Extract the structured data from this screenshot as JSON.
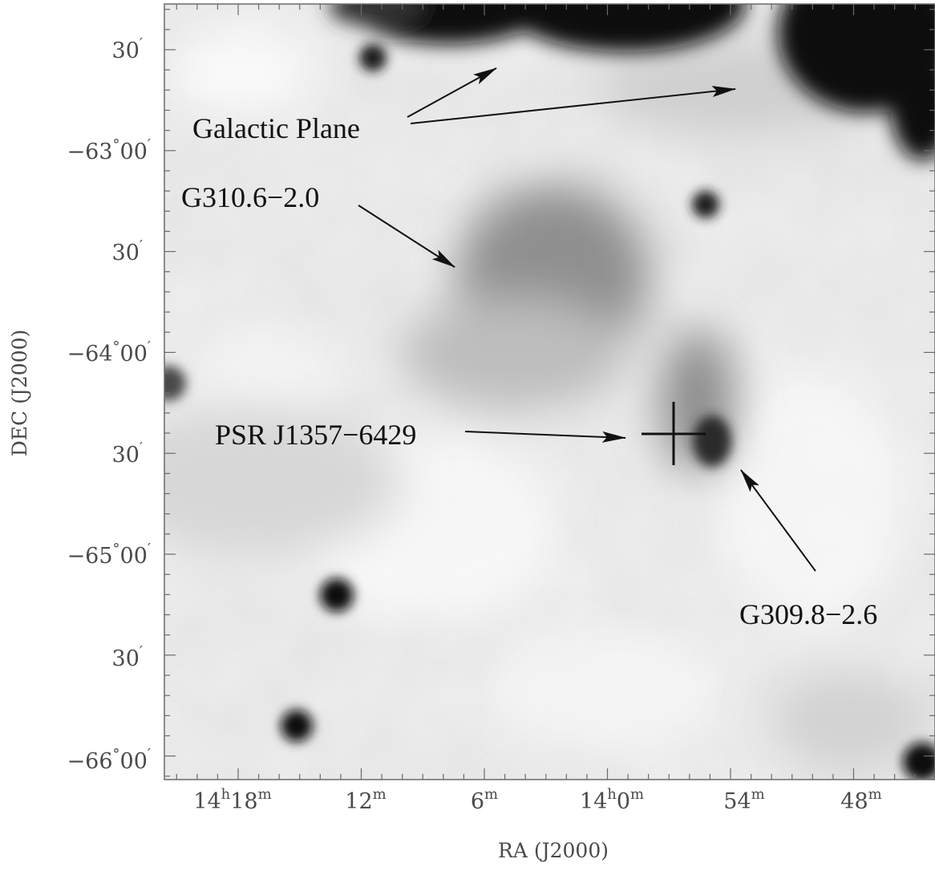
{
  "figure": {
    "x_axis_label": "RA (J2000)",
    "y_axis_label": "DEC (J2000)",
    "ra_ticks": [
      {
        "hours": "14",
        "minutes": "18",
        "h_sup": "h",
        "m_sup": "m"
      },
      {
        "hours": "",
        "minutes": "12",
        "h_sup": "",
        "m_sup": "m"
      },
      {
        "hours": "",
        "minutes": "6",
        "h_sup": "",
        "m_sup": "m"
      },
      {
        "hours": "14",
        "minutes": "0",
        "h_sup": "h",
        "m_sup": "m"
      },
      {
        "hours": "",
        "minutes": "54",
        "h_sup": "",
        "m_sup": "m"
      },
      {
        "hours": "",
        "minutes": "48",
        "h_sup": "",
        "m_sup": "m"
      }
    ],
    "dec_ticks": [
      {
        "deg": "",
        "min": "30",
        "deg_sup": "",
        "min_sup": "′"
      },
      {
        "deg": "−63",
        "min": "00",
        "deg_sup": "°",
        "min_sup": "′"
      },
      {
        "deg": "",
        "min": "30",
        "deg_sup": "",
        "min_sup": "′"
      },
      {
        "deg": "−64",
        "min": "00",
        "deg_sup": "°",
        "min_sup": "′"
      },
      {
        "deg": "",
        "min": "30",
        "deg_sup": "",
        "min_sup": "′"
      },
      {
        "deg": "−65",
        "min": "00",
        "deg_sup": "°",
        "min_sup": "′"
      },
      {
        "deg": "",
        "min": "30",
        "deg_sup": "",
        "min_sup": "′"
      },
      {
        "deg": "−66",
        "min": "00",
        "deg_sup": "°",
        "min_sup": "′"
      }
    ],
    "annotations": {
      "galactic_plane": "Galactic Plane",
      "snr_g310": "G310.6−2.0",
      "pulsar": "PSR J1357−6429",
      "snr_g309": "G309.8−2.6"
    },
    "colors": {
      "background": "#ffffff",
      "frame": "#6a6a6a",
      "annotation": "#111111",
      "sky_light": "#f2f2f2",
      "sky_dark": "#0a0a0a"
    }
  }
}
